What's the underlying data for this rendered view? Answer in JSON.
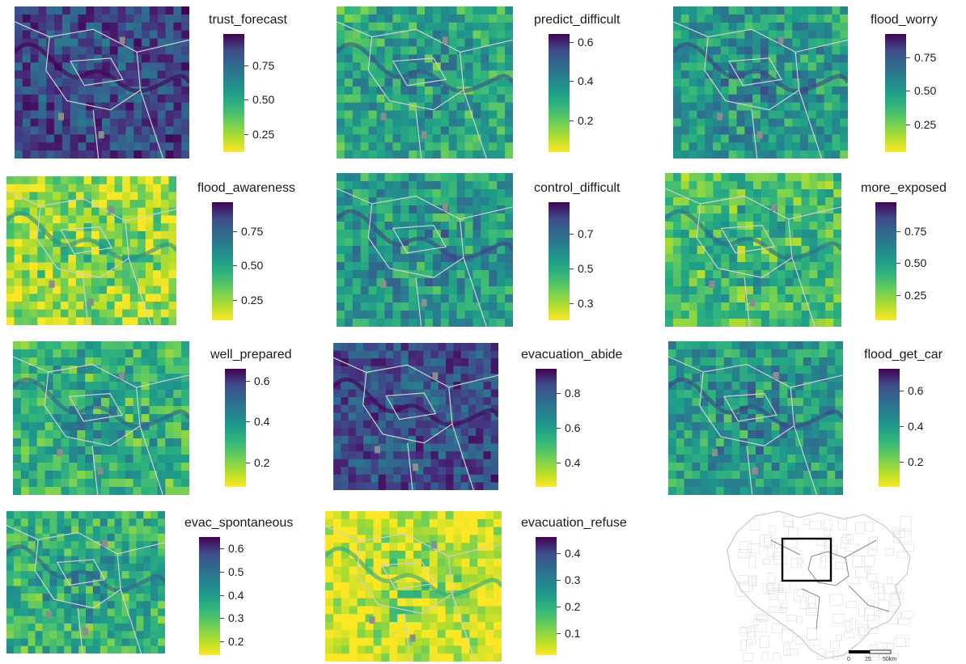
{
  "colors": {
    "viridis_low": "#fde725",
    "viridis_high": "#440154",
    "boundary": "#d0d0d0",
    "missing": "#8c8c8c"
  },
  "panels": [
    {
      "title": "trust_forecast",
      "ticks": [
        "0.75",
        "0.50",
        "0.25"
      ],
      "tick_values": [
        0.75,
        0.5,
        0.25
      ],
      "range": [
        0.12,
        0.98
      ],
      "mean_level": 0.8
    },
    {
      "title": "predict_difficult",
      "ticks": [
        "0.6",
        "0.4",
        "0.2"
      ],
      "tick_values": [
        0.6,
        0.4,
        0.2
      ],
      "range": [
        0.04,
        0.64
      ],
      "mean_level": 0.4
    },
    {
      "title": "flood_worry",
      "ticks": [
        "0.75",
        "0.50",
        "0.25"
      ],
      "tick_values": [
        0.75,
        0.5,
        0.25
      ],
      "range": [
        0.05,
        0.92
      ],
      "mean_level": 0.45
    },
    {
      "title": "flood_awareness",
      "ticks": [
        "0.75",
        "0.50",
        "0.25"
      ],
      "tick_values": [
        0.75,
        0.5,
        0.25
      ],
      "range": [
        0.1,
        0.96
      ],
      "mean_level": 0.15
    },
    {
      "title": "control_difficult",
      "ticks": [
        "0.7",
        "0.5",
        "0.3"
      ],
      "tick_values": [
        0.7,
        0.5,
        0.3
      ],
      "range": [
        0.2,
        0.88
      ],
      "mean_level": 0.45
    },
    {
      "title": "more_exposed",
      "ticks": [
        "0.75",
        "0.50",
        "0.25"
      ],
      "tick_values": [
        0.75,
        0.5,
        0.25
      ],
      "range": [
        0.05,
        0.98
      ],
      "mean_level": 0.3
    },
    {
      "title": "well_prepared",
      "ticks": [
        "0.6",
        "0.4",
        "0.2"
      ],
      "tick_values": [
        0.6,
        0.4,
        0.2
      ],
      "range": [
        0.08,
        0.66
      ],
      "mean_level": 0.35
    },
    {
      "title": "evacuation_abide",
      "ticks": [
        "0.8",
        "0.6",
        "0.4"
      ],
      "tick_values": [
        0.8,
        0.6,
        0.4
      ],
      "range": [
        0.26,
        0.94
      ],
      "mean_level": 0.78
    },
    {
      "title": "flood_get_car",
      "ticks": [
        "0.6",
        "0.4",
        "0.2"
      ],
      "tick_values": [
        0.6,
        0.4,
        0.2
      ],
      "range": [
        0.06,
        0.72
      ],
      "mean_level": 0.45
    },
    {
      "title": "evac_spontaneous",
      "ticks": [
        "0.6",
        "0.5",
        "0.4",
        "0.3",
        "0.2"
      ],
      "tick_values": [
        0.6,
        0.5,
        0.4,
        0.3,
        0.2
      ],
      "range": [
        0.14,
        0.65
      ],
      "mean_level": 0.35
    },
    {
      "title": "evacuation_refuse",
      "ticks": [
        "0.4",
        "0.3",
        "0.2",
        "0.1"
      ],
      "tick_values": [
        0.4,
        0.3,
        0.2,
        0.1
      ],
      "range": [
        0.02,
        0.46
      ],
      "mean_level": 0.05
    }
  ],
  "overview": {
    "scale_labels": [
      "0",
      "25",
      "50km"
    ]
  }
}
